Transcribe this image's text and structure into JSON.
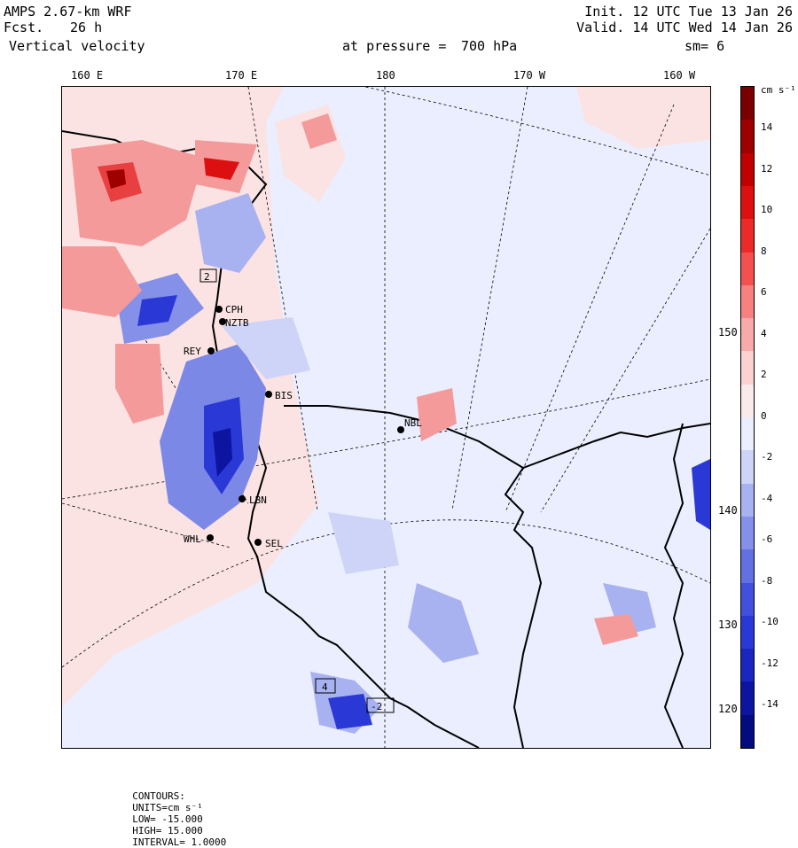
{
  "header": {
    "model": "AMPS 2.67-km WRF",
    "fcst_label": "Fcst.",
    "fcst_value": "26 h",
    "field": "Vertical velocity",
    "init": "Init. 12 UTC Tue 13 Jan 26",
    "valid": "Valid. 14 UTC Wed 14 Jan 26",
    "pressure_label": "at pressure =",
    "pressure_value": "700 hPa",
    "smoothing": "sm= 6"
  },
  "lon_ticks": [
    "160 E",
    "170 E",
    "180",
    "170 W",
    "160 W"
  ],
  "lat_ticks": [
    "150 W",
    "140 W",
    "130 W",
    "120 W"
  ],
  "stations": [
    {
      "id": "CPH"
    },
    {
      "id": "NZTB"
    },
    {
      "id": "REY"
    },
    {
      "id": "BIS"
    },
    {
      "id": "NBL"
    },
    {
      "id": "LBN"
    },
    {
      "id": "WHL"
    },
    {
      "id": "SEL"
    }
  ],
  "box_labels": [
    "2",
    "4",
    "-2"
  ],
  "colorbar": {
    "units": "cm s⁻¹",
    "labels": [
      "14",
      "12",
      "10",
      "8",
      "6",
      "4",
      "2",
      "0",
      "-2",
      "-4",
      "-6",
      "-8",
      "-10",
      "-12",
      "-14"
    ],
    "colors": [
      "#7a0000",
      "#9e0000",
      "#c00000",
      "#dc1010",
      "#ec2a2a",
      "#f45050",
      "#f78080",
      "#f6aaaa",
      "#fad2d2",
      "#fbeaea",
      "#eaeefe",
      "#cdd4f8",
      "#a8b2f0",
      "#8590e8",
      "#6370e2",
      "#4150dd",
      "#2a38d6",
      "#1a26c0",
      "#0c14a0",
      "#040a80"
    ]
  },
  "footer": {
    "contours": "CONTOURS:",
    "units": "UNITS=cm s⁻¹",
    "low": "LOW= -15.000",
    "high": "HIGH= 15.000",
    "interval": "INTERVAL= 1.0000"
  }
}
